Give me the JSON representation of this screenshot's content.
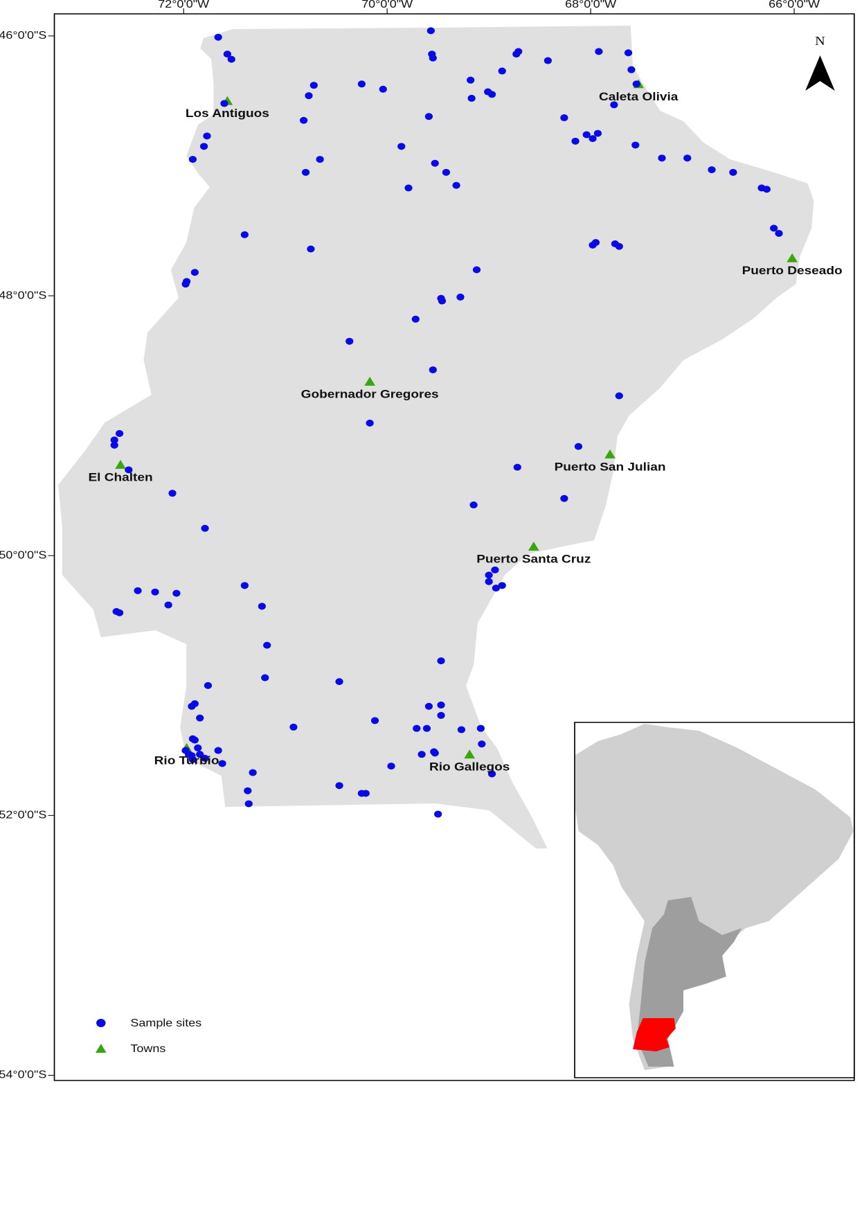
{
  "map": {
    "type": "map",
    "xlim": [
      -73.27,
      -65.41
    ],
    "ylim": [
      -54.04,
      -45.83
    ],
    "xticks": [
      {
        "value": -72,
        "label": "72°0'0\"W"
      },
      {
        "value": -70,
        "label": "70°0'0\"W"
      },
      {
        "value": -68,
        "label": "68°0'0\"W"
      },
      {
        "value": -66,
        "label": "66°0'0\"W"
      }
    ],
    "yticks": [
      {
        "value": -46,
        "label": "46°0'0\"S"
      },
      {
        "value": -48,
        "label": "48°0'0\"S"
      },
      {
        "value": -50,
        "label": "50°0'0\"S"
      },
      {
        "value": -52,
        "label": "52°0'0\"S"
      },
      {
        "value": -54,
        "label": "54°0'0\"S"
      }
    ],
    "north_arrow": "N",
    "sample_sites": {
      "name": "Sample sites",
      "color": "#0a0ae6",
      "points": [
        [
          -71.66,
          -46.01
        ],
        [
          -69.57,
          -45.96
        ],
        [
          -71.57,
          -46.14
        ],
        [
          -71.53,
          -46.18
        ],
        [
          -69.56,
          -46.14
        ],
        [
          -69.55,
          -46.17
        ],
        [
          -68.71,
          -46.12
        ],
        [
          -68.73,
          -46.14
        ],
        [
          -67.92,
          -46.12
        ],
        [
          -67.63,
          -46.13
        ],
        [
          -68.42,
          -46.19
        ],
        [
          -68.87,
          -46.27
        ],
        [
          -67.6,
          -46.26
        ],
        [
          -69.18,
          -46.34
        ],
        [
          -70.25,
          -46.37
        ],
        [
          -70.72,
          -46.38
        ],
        [
          -70.04,
          -46.41
        ],
        [
          -70.77,
          -46.46
        ],
        [
          -69.01,
          -46.43
        ],
        [
          -68.97,
          -46.45
        ],
        [
          -69.17,
          -46.48
        ],
        [
          -71.6,
          -46.52
        ],
        [
          -67.55,
          -46.37
        ],
        [
          -67.77,
          -46.53
        ],
        [
          -69.59,
          -46.62
        ],
        [
          -68.26,
          -46.63
        ],
        [
          -70.82,
          -46.65
        ],
        [
          -71.77,
          -46.77
        ],
        [
          -68.04,
          -46.76
        ],
        [
          -67.93,
          -46.75
        ],
        [
          -68.15,
          -46.81
        ],
        [
          -67.98,
          -46.79
        ],
        [
          -71.8,
          -46.85
        ],
        [
          -69.86,
          -46.85
        ],
        [
          -67.56,
          -46.84
        ],
        [
          -71.91,
          -46.95
        ],
        [
          -70.66,
          -46.95
        ],
        [
          -69.53,
          -46.98
        ],
        [
          -67.3,
          -46.94
        ],
        [
          -67.05,
          -46.94
        ],
        [
          -70.8,
          -47.05
        ],
        [
          -69.42,
          -47.05
        ],
        [
          -66.81,
          -47.03
        ],
        [
          -66.6,
          -47.05
        ],
        [
          -69.32,
          -47.15
        ],
        [
          -69.79,
          -47.17
        ],
        [
          -66.32,
          -47.17
        ],
        [
          -66.27,
          -47.18
        ],
        [
          -66.2,
          -47.48
        ],
        [
          -66.15,
          -47.52
        ],
        [
          -71.4,
          -47.53
        ],
        [
          -70.75,
          -47.64
        ],
        [
          -67.98,
          -47.61
        ],
        [
          -67.95,
          -47.59
        ],
        [
          -67.76,
          -47.6
        ],
        [
          -67.72,
          -47.62
        ],
        [
          -69.12,
          -47.8
        ],
        [
          -71.89,
          -47.82
        ],
        [
          -71.97,
          -47.89
        ],
        [
          -71.98,
          -47.91
        ],
        [
          -69.47,
          -48.02
        ],
        [
          -69.46,
          -48.04
        ],
        [
          -69.28,
          -48.01
        ],
        [
          -69.72,
          -48.18
        ],
        [
          -70.37,
          -48.35
        ],
        [
          -69.55,
          -48.57
        ],
        [
          -67.72,
          -48.77
        ],
        [
          -70.17,
          -48.98
        ],
        [
          -72.63,
          -49.06
        ],
        [
          -72.68,
          -49.11
        ],
        [
          -72.68,
          -49.15
        ],
        [
          -68.12,
          -49.16
        ],
        [
          -72.54,
          -49.34
        ],
        [
          -68.72,
          -49.32
        ],
        [
          -72.11,
          -49.52
        ],
        [
          -68.26,
          -49.56
        ],
        [
          -69.15,
          -49.61
        ],
        [
          -71.79,
          -49.79
        ],
        [
          -68.94,
          -50.11
        ],
        [
          -69.0,
          -50.15
        ],
        [
          -69.0,
          -50.2
        ],
        [
          -68.93,
          -50.25
        ],
        [
          -68.87,
          -50.23
        ],
        [
          -72.45,
          -50.27
        ],
        [
          -72.28,
          -50.28
        ],
        [
          -72.07,
          -50.29
        ],
        [
          -71.4,
          -50.23
        ],
        [
          -72.15,
          -50.38
        ],
        [
          -71.23,
          -50.39
        ],
        [
          -72.66,
          -50.43
        ],
        [
          -72.63,
          -50.44
        ],
        [
          -71.18,
          -50.69
        ],
        [
          -69.47,
          -50.81
        ],
        [
          -71.2,
          -50.94
        ],
        [
          -70.47,
          -50.97
        ],
        [
          -71.76,
          -51.0
        ],
        [
          -71.89,
          -51.14
        ],
        [
          -71.92,
          -51.16
        ],
        [
          -70.12,
          -51.27
        ],
        [
          -71.84,
          -51.25
        ],
        [
          -70.92,
          -51.32
        ],
        [
          -69.59,
          -51.16
        ],
        [
          -69.47,
          -51.15
        ],
        [
          -69.47,
          -51.23
        ],
        [
          -69.71,
          -51.33
        ],
        [
          -69.61,
          -51.33
        ],
        [
          -69.27,
          -51.34
        ],
        [
          -69.08,
          -51.33
        ],
        [
          -71.91,
          -51.41
        ],
        [
          -71.89,
          -51.42
        ],
        [
          -69.07,
          -51.45
        ],
        [
          -71.86,
          -51.48
        ],
        [
          -71.98,
          -51.5
        ],
        [
          -71.66,
          -51.5
        ],
        [
          -69.66,
          -51.53
        ],
        [
          -69.54,
          -51.51
        ],
        [
          -69.53,
          -51.52
        ],
        [
          -71.95,
          -51.53
        ],
        [
          -71.92,
          -51.54
        ],
        [
          -71.84,
          -51.53
        ],
        [
          -71.79,
          -51.56
        ],
        [
          -71.91,
          -51.57
        ],
        [
          -71.62,
          -51.6
        ],
        [
          -69.96,
          -51.62
        ],
        [
          -68.97,
          -51.68
        ],
        [
          -71.32,
          -51.67
        ],
        [
          -70.47,
          -51.77
        ],
        [
          -71.37,
          -51.81
        ],
        [
          -70.25,
          -51.83
        ],
        [
          -70.21,
          -51.83
        ],
        [
          -71.36,
          -51.91
        ],
        [
          -69.5,
          -51.99
        ]
      ]
    },
    "towns": {
      "name": "Towns",
      "color": "#3aa60f",
      "points": [
        {
          "name": "Los Antiguos",
          "lon": -71.57,
          "lat": -46.5
        },
        {
          "name": "Caleta Olivia",
          "lon": -67.53,
          "lat": -46.37
        },
        {
          "name": "Puerto Deseado",
          "lon": -66.02,
          "lat": -47.71
        },
        {
          "name": "Gobernador Gregores",
          "lon": -70.17,
          "lat": -48.66
        },
        {
          "name": "El Chalten",
          "lon": -72.62,
          "lat": -49.3
        },
        {
          "name": "Puerto San Julian",
          "lon": -67.81,
          "lat": -49.22
        },
        {
          "name": "Puerto Santa Cruz",
          "lon": -68.56,
          "lat": -49.93
        },
        {
          "name": "Rio Turbio",
          "lon": -71.97,
          "lat": -51.48
        },
        {
          "name": "Rio Gallegos",
          "lon": -69.19,
          "lat": -51.53
        }
      ]
    }
  }
}
